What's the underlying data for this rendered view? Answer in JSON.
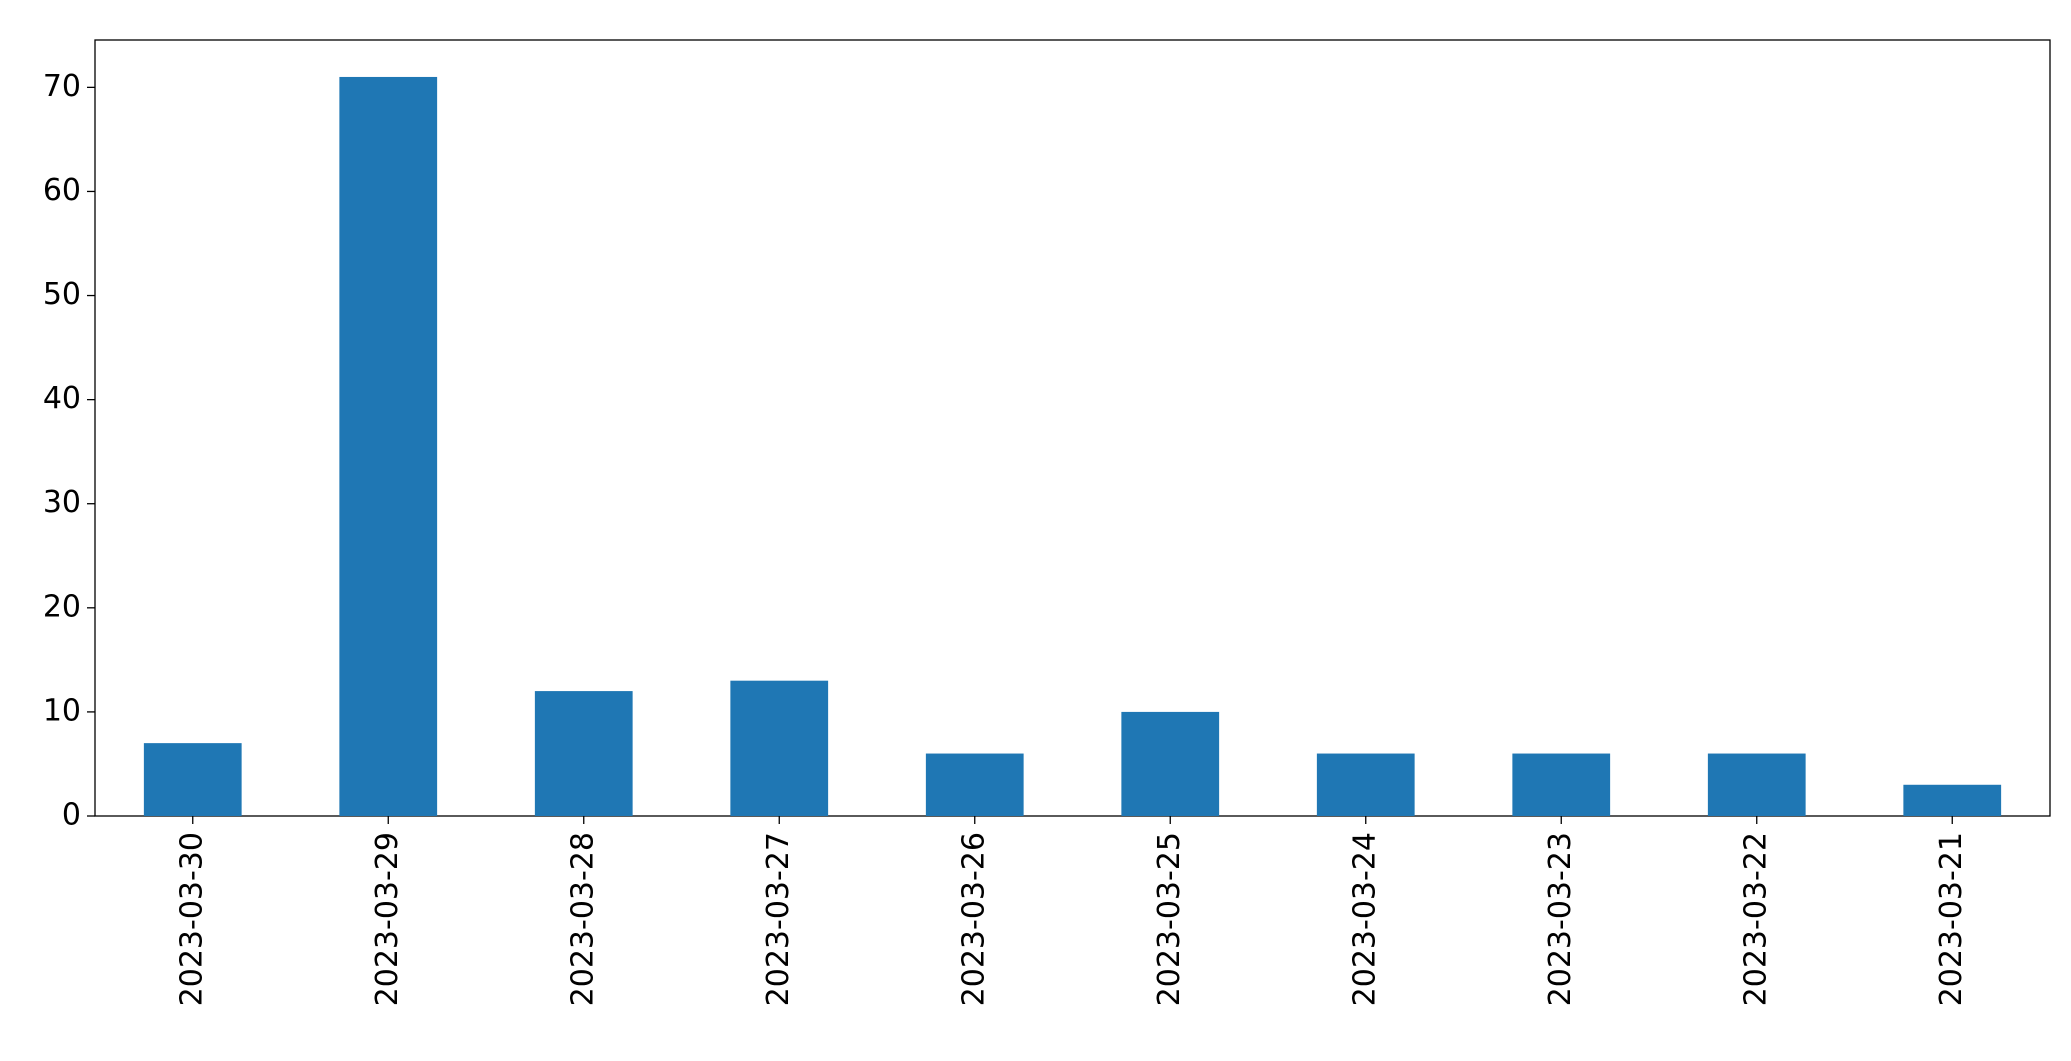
{
  "chart_data": {
    "type": "bar",
    "categories": [
      "2023-03-30",
      "2023-03-29",
      "2023-03-28",
      "2023-03-27",
      "2023-03-26",
      "2023-03-25",
      "2023-03-24",
      "2023-03-23",
      "2023-03-22",
      "2023-03-21"
    ],
    "values": [
      7,
      71,
      12,
      13,
      6,
      10,
      6,
      6,
      6,
      3
    ],
    "color": "#1f77b4",
    "ylim": [
      0,
      74.55
    ],
    "yticks": [
      0,
      10,
      20,
      30,
      40,
      50,
      60,
      70
    ],
    "grid": false
  }
}
